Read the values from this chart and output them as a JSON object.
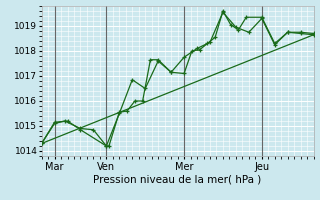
{
  "title": "",
  "xlabel": "Pression niveau de la mer( hPa )",
  "ylabel": "",
  "bg_color": "#cce8ee",
  "line_color": "#1a6b1a",
  "grid_color": "#ffffff",
  "ylim": [
    1013.8,
    1019.8
  ],
  "xlim": [
    0,
    10.5
  ],
  "yticks": [
    1014,
    1015,
    1016,
    1017,
    1018,
    1019
  ],
  "xtick_labels": [
    "Mar",
    "Ven",
    "Mer",
    "Jeu"
  ],
  "xtick_positions": [
    0.5,
    2.5,
    5.5,
    8.5
  ],
  "vlines": [
    0.5,
    2.5,
    5.5,
    8.5
  ],
  "line1": [
    [
      0.0,
      1014.3
    ],
    [
      0.5,
      1015.1
    ],
    [
      0.9,
      1015.2
    ],
    [
      1.5,
      1014.9
    ],
    [
      2.0,
      1014.85
    ],
    [
      2.5,
      1014.2
    ],
    [
      2.6,
      1014.2
    ],
    [
      3.0,
      1015.55
    ],
    [
      3.3,
      1015.6
    ],
    [
      3.6,
      1016.0
    ],
    [
      3.9,
      1016.0
    ],
    [
      4.2,
      1017.65
    ],
    [
      4.5,
      1017.65
    ],
    [
      5.0,
      1017.15
    ],
    [
      5.5,
      1017.1
    ],
    [
      5.8,
      1018.0
    ],
    [
      6.1,
      1018.05
    ],
    [
      6.4,
      1018.3
    ],
    [
      6.7,
      1018.55
    ],
    [
      7.0,
      1019.6
    ],
    [
      7.3,
      1019.05
    ],
    [
      7.6,
      1018.85
    ],
    [
      7.9,
      1019.35
    ],
    [
      8.5,
      1019.35
    ],
    [
      9.0,
      1018.3
    ],
    [
      9.5,
      1018.75
    ],
    [
      10.0,
      1018.75
    ],
    [
      10.5,
      1018.7
    ]
  ],
  "line2": [
    [
      0.0,
      1014.3
    ],
    [
      0.5,
      1015.15
    ],
    [
      1.0,
      1015.2
    ],
    [
      1.5,
      1014.85
    ],
    [
      2.5,
      1014.2
    ],
    [
      3.0,
      1015.5
    ],
    [
      3.5,
      1016.85
    ],
    [
      4.0,
      1016.5
    ],
    [
      4.5,
      1017.6
    ],
    [
      5.0,
      1017.15
    ],
    [
      5.5,
      1017.75
    ],
    [
      6.0,
      1018.1
    ],
    [
      6.5,
      1018.35
    ],
    [
      7.0,
      1019.55
    ],
    [
      7.5,
      1018.95
    ],
    [
      8.0,
      1018.75
    ],
    [
      8.5,
      1019.3
    ],
    [
      9.0,
      1018.25
    ],
    [
      9.5,
      1018.75
    ],
    [
      10.0,
      1018.7
    ],
    [
      10.5,
      1018.65
    ]
  ],
  "trend_line": [
    [
      0.0,
      1014.3
    ],
    [
      10.5,
      1018.65
    ]
  ]
}
